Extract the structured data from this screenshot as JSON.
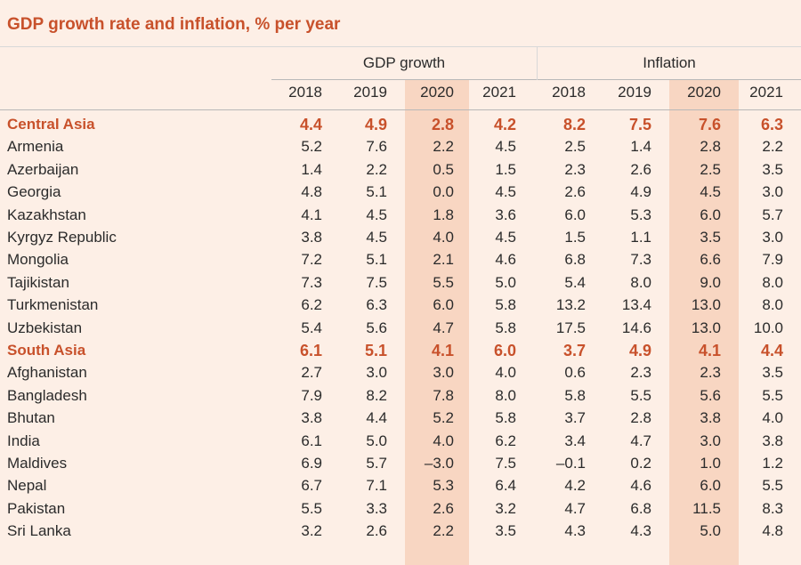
{
  "title": "GDP growth rate and inflation, % per year",
  "groups": [
    "GDP growth",
    "Inflation"
  ],
  "years": [
    "2018",
    "2019",
    "2020",
    "2021",
    "2018",
    "2019",
    "2020",
    "2021"
  ],
  "chart_data": {
    "type": "table",
    "title": "GDP growth rate and inflation, % per year",
    "column_groups": [
      {
        "name": "GDP growth",
        "years": [
          "2018",
          "2019",
          "2020",
          "2021"
        ]
      },
      {
        "name": "Inflation",
        "years": [
          "2018",
          "2019",
          "2020",
          "2021"
        ]
      }
    ],
    "highlighted_column": "2020",
    "rows": [
      {
        "name": "Central Asia",
        "region": true,
        "values": [
          "4.4",
          "4.9",
          "2.8",
          "4.2",
          "8.2",
          "7.5",
          "7.6",
          "6.3"
        ]
      },
      {
        "name": "Armenia",
        "region": false,
        "values": [
          "5.2",
          "7.6",
          "2.2",
          "4.5",
          "2.5",
          "1.4",
          "2.8",
          "2.2"
        ]
      },
      {
        "name": "Azerbaijan",
        "region": false,
        "values": [
          "1.4",
          "2.2",
          "0.5",
          "1.5",
          "2.3",
          "2.6",
          "2.5",
          "3.5"
        ]
      },
      {
        "name": "Georgia",
        "region": false,
        "values": [
          "4.8",
          "5.1",
          "0.0",
          "4.5",
          "2.6",
          "4.9",
          "4.5",
          "3.0"
        ]
      },
      {
        "name": "Kazakhstan",
        "region": false,
        "values": [
          "4.1",
          "4.5",
          "1.8",
          "3.6",
          "6.0",
          "5.3",
          "6.0",
          "5.7"
        ]
      },
      {
        "name": "Kyrgyz Republic",
        "region": false,
        "values": [
          "3.8",
          "4.5",
          "4.0",
          "4.5",
          "1.5",
          "1.1",
          "3.5",
          "3.0"
        ]
      },
      {
        "name": "Mongolia",
        "region": false,
        "values": [
          "7.2",
          "5.1",
          "2.1",
          "4.6",
          "6.8",
          "7.3",
          "6.6",
          "7.9"
        ]
      },
      {
        "name": "Tajikistan",
        "region": false,
        "values": [
          "7.3",
          "7.5",
          "5.5",
          "5.0",
          "5.4",
          "8.0",
          "9.0",
          "8.0"
        ]
      },
      {
        "name": "Turkmenistan",
        "region": false,
        "values": [
          "6.2",
          "6.3",
          "6.0",
          "5.8",
          "13.2",
          "13.4",
          "13.0",
          "8.0"
        ]
      },
      {
        "name": "Uzbekistan",
        "region": false,
        "values": [
          "5.4",
          "5.6",
          "4.7",
          "5.8",
          "17.5",
          "14.6",
          "13.0",
          "10.0"
        ]
      },
      {
        "name": "South Asia",
        "region": true,
        "values": [
          "6.1",
          "5.1",
          "4.1",
          "6.0",
          "3.7",
          "4.9",
          "4.1",
          "4.4"
        ]
      },
      {
        "name": "Afghanistan",
        "region": false,
        "values": [
          "2.7",
          "3.0",
          "3.0",
          "4.0",
          "0.6",
          "2.3",
          "2.3",
          "3.5"
        ]
      },
      {
        "name": "Bangladesh",
        "region": false,
        "values": [
          "7.9",
          "8.2",
          "7.8",
          "8.0",
          "5.8",
          "5.5",
          "5.6",
          "5.5"
        ]
      },
      {
        "name": "Bhutan",
        "region": false,
        "values": [
          "3.8",
          "4.4",
          "5.2",
          "5.8",
          "3.7",
          "2.8",
          "3.8",
          "4.0"
        ]
      },
      {
        "name": "India",
        "region": false,
        "values": [
          "6.1",
          "5.0",
          "4.0",
          "6.2",
          "3.4",
          "4.7",
          "3.0",
          "3.8"
        ]
      },
      {
        "name": "Maldives",
        "region": false,
        "values": [
          "6.9",
          "5.7",
          "–3.0",
          "7.5",
          "–0.1",
          "0.2",
          "1.0",
          "1.2"
        ]
      },
      {
        "name": "Nepal",
        "region": false,
        "values": [
          "6.7",
          "7.1",
          "5.3",
          "6.4",
          "4.2",
          "4.6",
          "6.0",
          "5.5"
        ]
      },
      {
        "name": "Pakistan",
        "region": false,
        "values": [
          "5.5",
          "3.3",
          "2.6",
          "3.2",
          "4.7",
          "6.8",
          "11.5",
          "8.3"
        ]
      },
      {
        "name": "Sri Lanka",
        "region": false,
        "values": [
          "3.2",
          "2.6",
          "2.2",
          "3.5",
          "4.3",
          "4.3",
          "5.0",
          "4.8"
        ]
      }
    ]
  }
}
